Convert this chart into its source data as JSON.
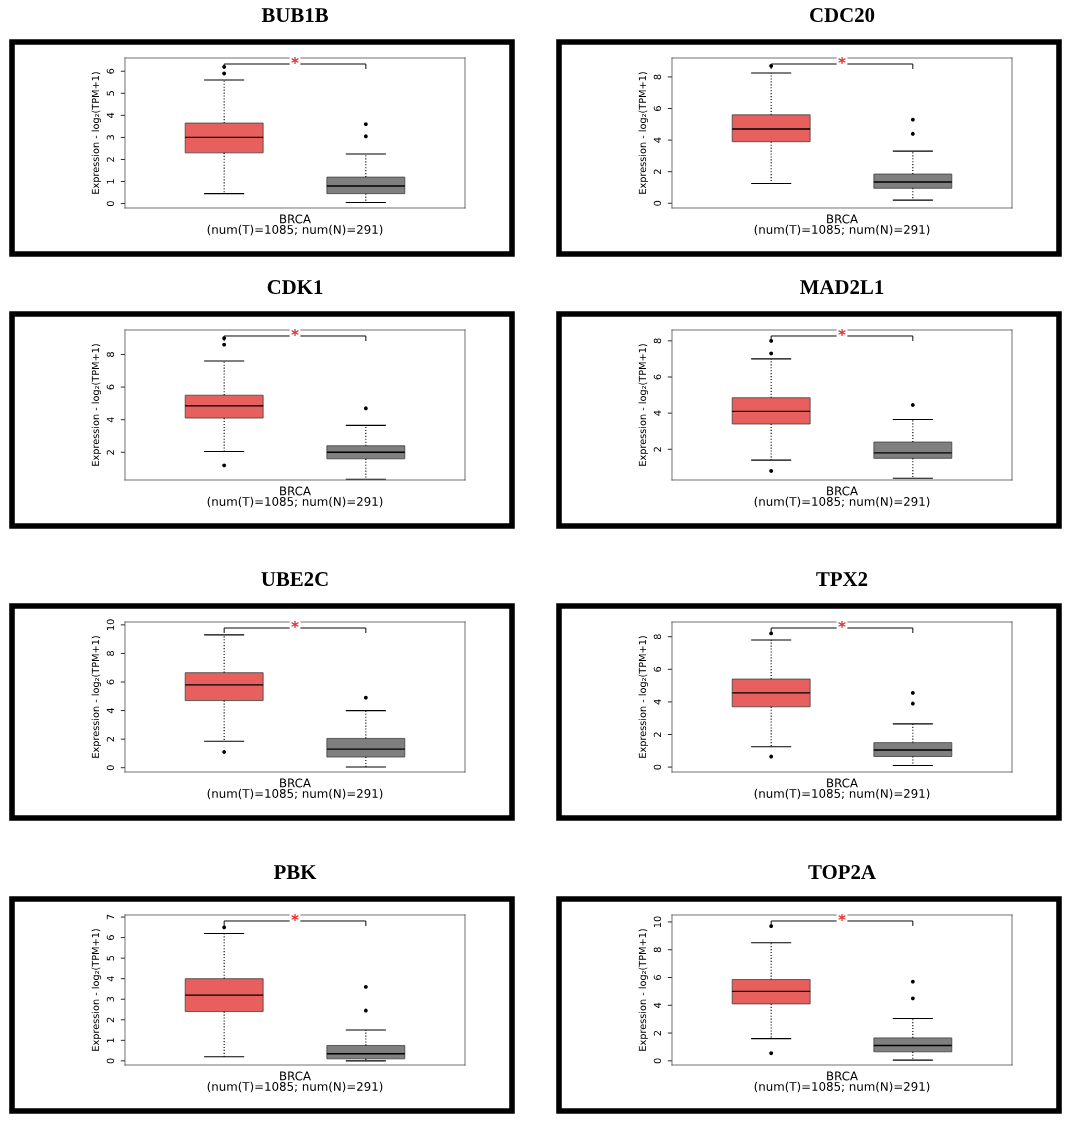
{
  "chart_data": [
    {
      "type": "box",
      "title": "BUB1B",
      "xlabel": "BRCA\n(num(T)=1085; num(N)=291)",
      "ylabel": "Expression - log₂(TPM+1)",
      "categories": [
        null,
        null
      ],
      "colors": [
        "#e8605e",
        "#7f7f7f"
      ],
      "ylim": [
        -0.2,
        6.6
      ],
      "yticks": [
        0,
        1,
        2,
        3,
        4,
        5,
        6
      ],
      "annotations": [
        "*"
      ],
      "grid": false,
      "boxes": [
        {
          "low": 0.45,
          "q1": 2.3,
          "median": 3.0,
          "q3": 3.65,
          "high": 5.6,
          "outliers": [
            5.9,
            6.2
          ]
        },
        {
          "low": 0.05,
          "q1": 0.45,
          "median": 0.8,
          "q3": 1.2,
          "high": 2.25,
          "outliers": [
            3.05,
            3.6
          ]
        }
      ]
    },
    {
      "type": "box",
      "title": "CDC20",
      "xlabel": "BRCA\n(num(T)=1085; num(N)=291)",
      "ylabel": "Expression - log₂(TPM+1)",
      "categories": [
        null,
        null
      ],
      "colors": [
        "#e8605e",
        "#7f7f7f"
      ],
      "ylim": [
        -0.3,
        9.2
      ],
      "yticks": [
        0,
        2,
        4,
        6,
        8
      ],
      "annotations": [
        "*"
      ],
      "grid": false,
      "boxes": [
        {
          "low": 1.25,
          "q1": 3.9,
          "median": 4.7,
          "q3": 5.6,
          "high": 8.25,
          "outliers": [
            8.7
          ]
        },
        {
          "low": 0.2,
          "q1": 0.95,
          "median": 1.35,
          "q3": 1.85,
          "high": 3.3,
          "outliers": [
            4.4,
            5.3
          ]
        }
      ]
    },
    {
      "type": "box",
      "title": "CDK1",
      "xlabel": "BRCA\n(num(T)=1085; num(N)=291)",
      "ylabel": "Expression - log₂(TPM+1)",
      "categories": [
        null,
        null
      ],
      "colors": [
        "#e8605e",
        "#7f7f7f"
      ],
      "ylim": [
        0.3,
        9.5
      ],
      "yticks": [
        2,
        4,
        6,
        8
      ],
      "annotations": [
        "*"
      ],
      "grid": false,
      "boxes": [
        {
          "low": 2.05,
          "q1": 4.1,
          "median": 4.85,
          "q3": 5.5,
          "high": 7.6,
          "outliers": [
            1.2,
            8.6,
            9.0
          ]
        },
        {
          "low": 0.35,
          "q1": 1.6,
          "median": 2.0,
          "q3": 2.4,
          "high": 3.65,
          "outliers": [
            4.7
          ]
        }
      ]
    },
    {
      "type": "box",
      "title": "MAD2L1",
      "xlabel": "BRCA\n(num(T)=1085; num(N)=291)",
      "ylabel": "Expression - log₂(TPM+1)",
      "categories": [
        null,
        null
      ],
      "colors": [
        "#e8605e",
        "#7f7f7f"
      ],
      "ylim": [
        0.3,
        8.6
      ],
      "yticks": [
        2,
        4,
        6,
        8
      ],
      "annotations": [
        "*"
      ],
      "grid": false,
      "boxes": [
        {
          "low": 1.4,
          "q1": 3.4,
          "median": 4.1,
          "q3": 4.85,
          "high": 7.0,
          "outliers": [
            0.8,
            7.3,
            8.0
          ]
        },
        {
          "low": 0.4,
          "q1": 1.5,
          "median": 1.8,
          "q3": 2.4,
          "high": 3.65,
          "outliers": [
            4.45
          ]
        }
      ]
    },
    {
      "type": "box",
      "title": "UBE2C",
      "xlabel": "BRCA\n(num(T)=1085; num(N)=291)",
      "ylabel": "Expression - log₂(TPM+1)",
      "categories": [
        null,
        null
      ],
      "colors": [
        "#e8605e",
        "#7f7f7f"
      ],
      "ylim": [
        -0.3,
        10.2
      ],
      "yticks": [
        0,
        2,
        4,
        6,
        8,
        10
      ],
      "annotations": [
        "*"
      ],
      "grid": false,
      "boxes": [
        {
          "low": 1.85,
          "q1": 4.7,
          "median": 5.8,
          "q3": 6.65,
          "high": 9.3,
          "outliers": [
            1.1
          ]
        },
        {
          "low": 0.05,
          "q1": 0.75,
          "median": 1.3,
          "q3": 2.05,
          "high": 4.0,
          "outliers": [
            4.9
          ]
        }
      ]
    },
    {
      "type": "box",
      "title": "TPX2",
      "xlabel": "BRCA\n(num(T)=1085; num(N)=291)",
      "ylabel": "Expression - log₂(TPM+1)",
      "categories": [
        null,
        null
      ],
      "colors": [
        "#e8605e",
        "#7f7f7f"
      ],
      "ylim": [
        -0.3,
        8.9
      ],
      "yticks": [
        0,
        2,
        4,
        6,
        8
      ],
      "annotations": [
        "*"
      ],
      "grid": false,
      "boxes": [
        {
          "low": 1.25,
          "q1": 3.7,
          "median": 4.55,
          "q3": 5.4,
          "high": 7.8,
          "outliers": [
            0.65,
            8.2
          ]
        },
        {
          "low": 0.1,
          "q1": 0.65,
          "median": 1.05,
          "q3": 1.5,
          "high": 2.65,
          "outliers": [
            3.9,
            4.55
          ]
        }
      ]
    },
    {
      "type": "box",
      "title": "PBK",
      "xlabel": "BRCA\n(num(T)=1085; num(N)=291)",
      "ylabel": "Expression - log₂(TPM+1)",
      "categories": [
        null,
        null
      ],
      "colors": [
        "#e8605e",
        "#7f7f7f"
      ],
      "ylim": [
        -0.2,
        7.1
      ],
      "yticks": [
        0,
        1,
        2,
        3,
        4,
        5,
        6,
        7
      ],
      "annotations": [
        "*"
      ],
      "grid": false,
      "boxes": [
        {
          "low": 0.2,
          "q1": 2.4,
          "median": 3.2,
          "q3": 4.0,
          "high": 6.2,
          "outliers": [
            6.5
          ]
        },
        {
          "low": 0.0,
          "q1": 0.1,
          "median": 0.35,
          "q3": 0.75,
          "high": 1.5,
          "outliers": [
            2.45,
            3.6
          ]
        }
      ]
    },
    {
      "type": "box",
      "title": "TOP2A",
      "xlabel": "BRCA\n(num(T)=1085; num(N)=291)",
      "ylabel": "Expression - log₂(TPM+1)",
      "categories": [
        null,
        null
      ],
      "colors": [
        "#e8605e",
        "#7f7f7f"
      ],
      "ylim": [
        -0.3,
        10.5
      ],
      "yticks": [
        0,
        2,
        4,
        6,
        8,
        10
      ],
      "annotations": [
        "*"
      ],
      "grid": false,
      "boxes": [
        {
          "low": 1.6,
          "q1": 4.1,
          "median": 5.0,
          "q3": 5.85,
          "high": 8.5,
          "outliers": [
            0.55,
            9.7
          ]
        },
        {
          "low": 0.05,
          "q1": 0.65,
          "median": 1.1,
          "q3": 1.65,
          "high": 3.05,
          "outliers": [
            4.5,
            5.7
          ]
        }
      ]
    }
  ]
}
